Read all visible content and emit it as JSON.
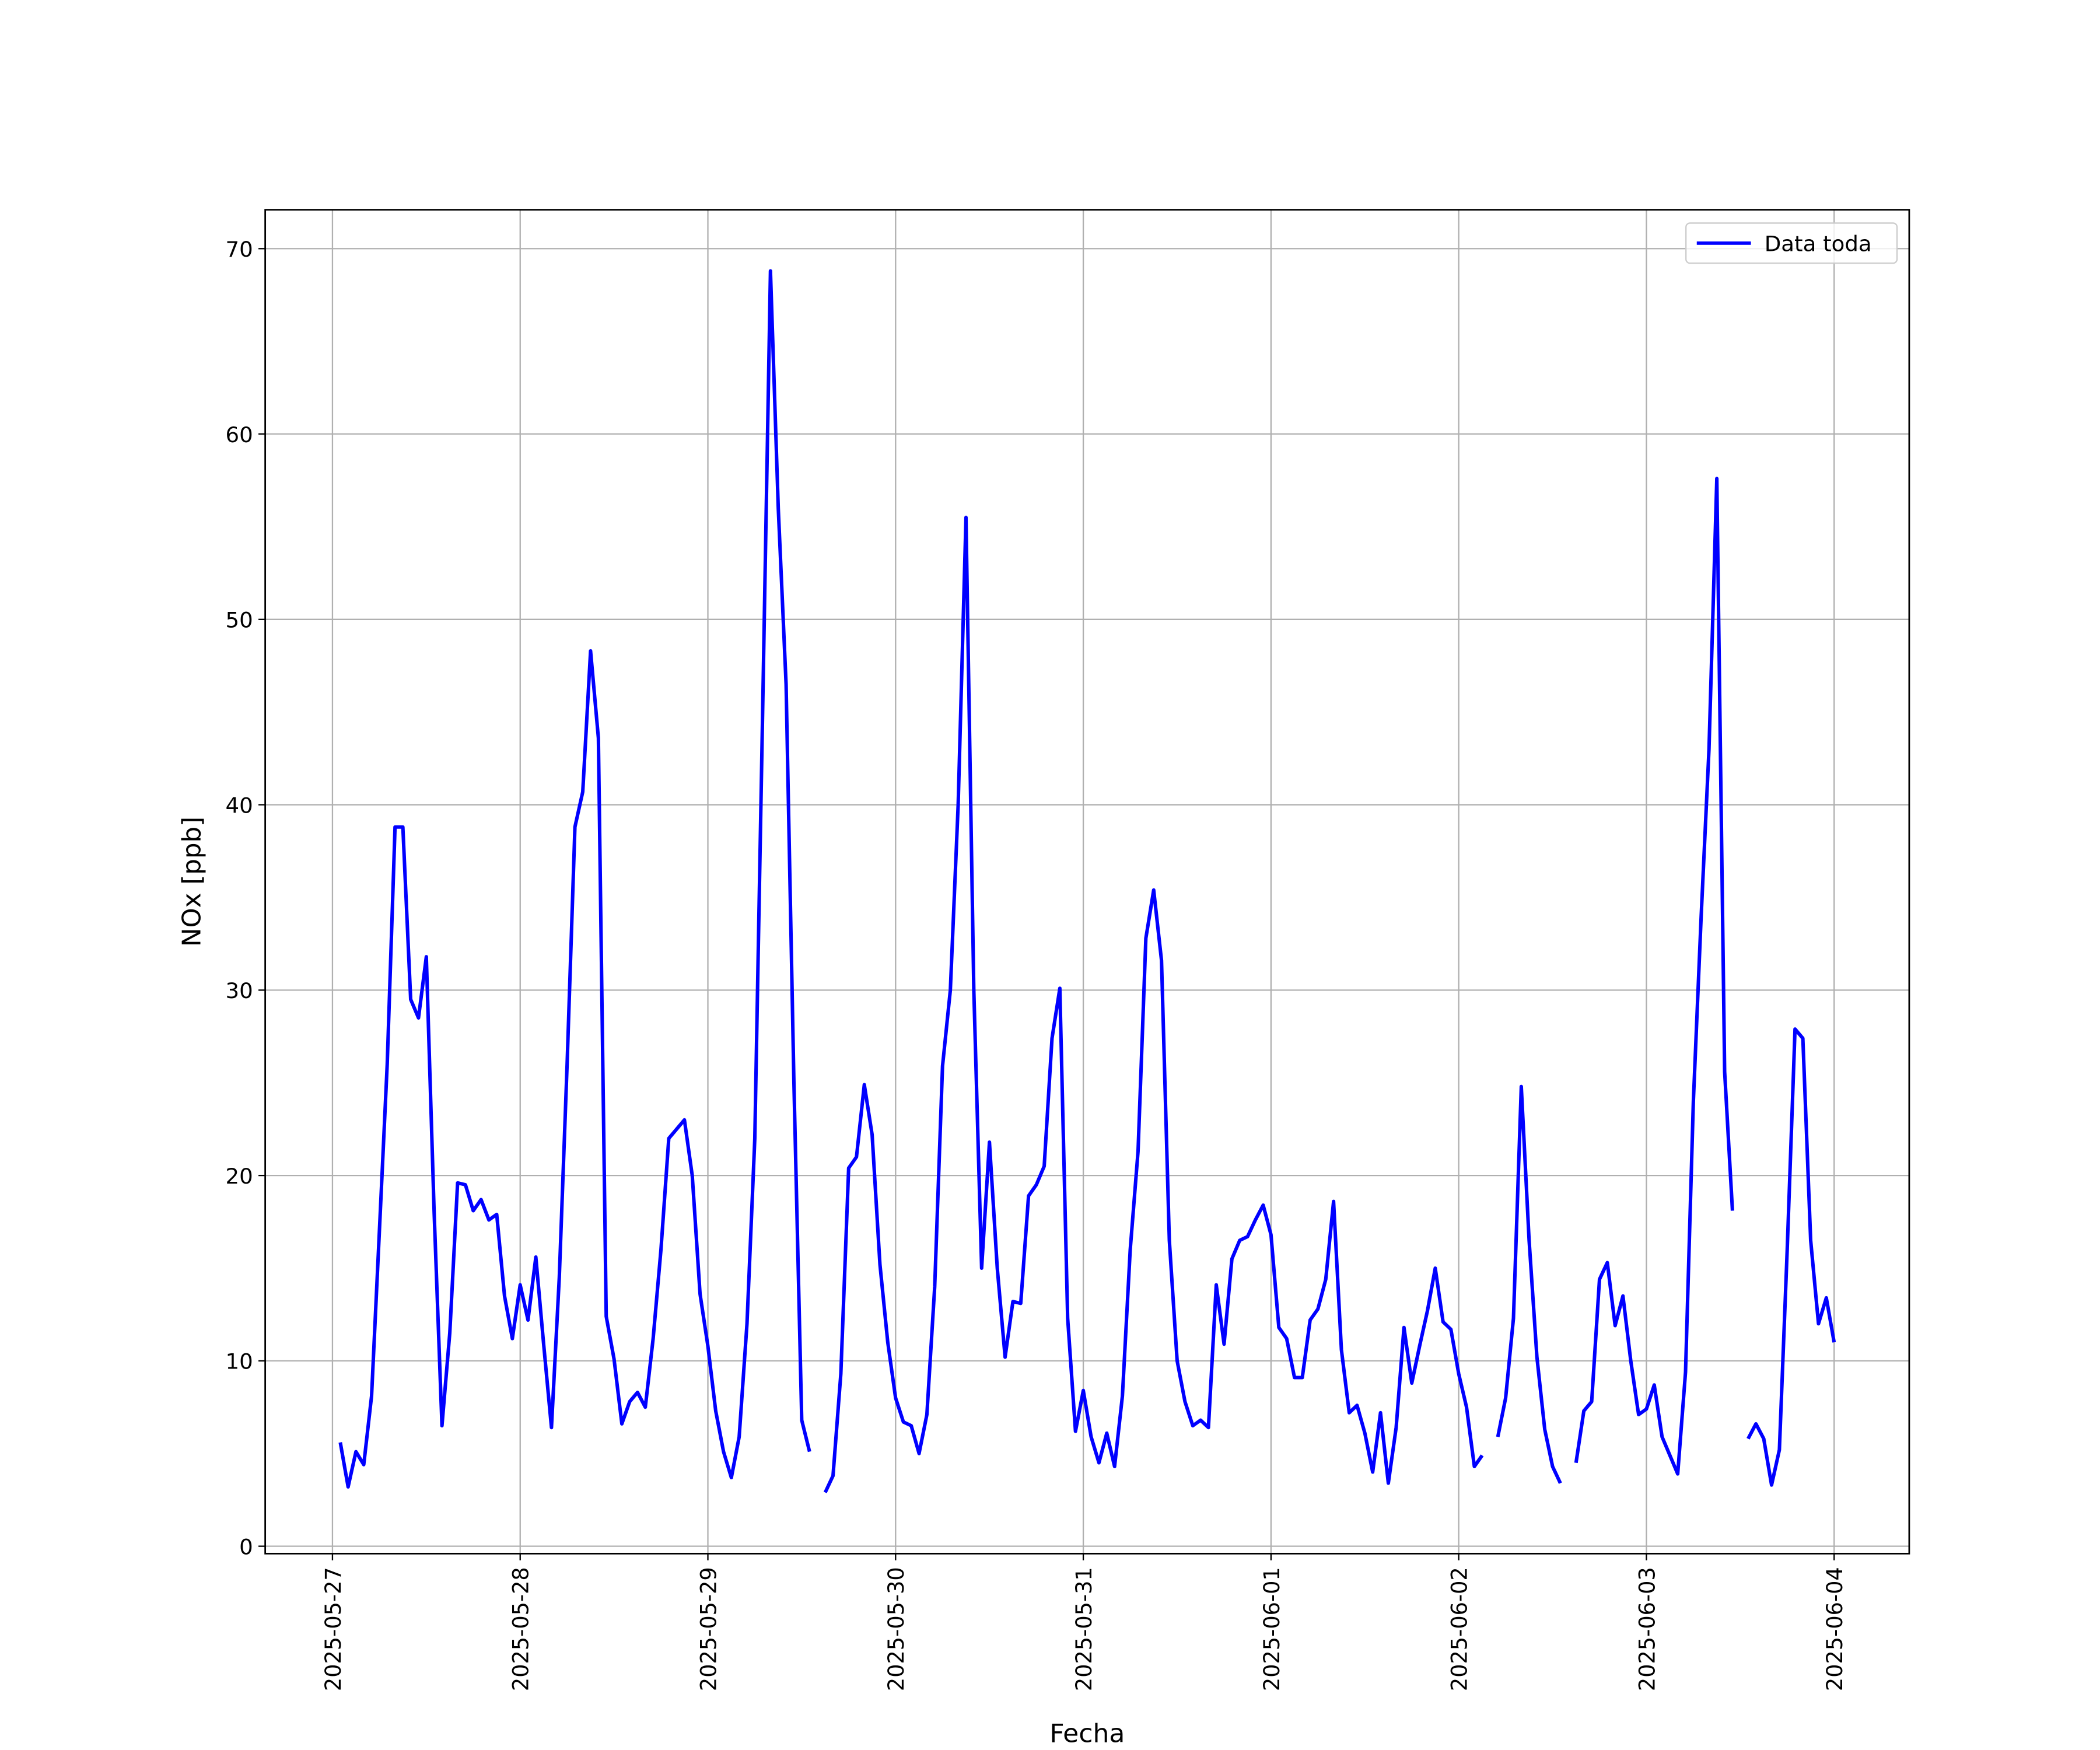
{
  "chart_data": {
    "type": "line",
    "xlabel": "Fecha",
    "ylabel": "NOx [ppb]",
    "grid": true,
    "legend": "upper right",
    "xlim": [
      "2025-05-26 15:24",
      "2025-06-04 09:36"
    ],
    "ylim": [
      -0.4,
      72.1
    ],
    "xticks": [
      "2025-05-27",
      "2025-05-28",
      "2025-05-29",
      "2025-05-30",
      "2025-05-31",
      "2025-06-01",
      "2025-06-02",
      "2025-06-03",
      "2025-06-04"
    ],
    "yticks": [
      0,
      10,
      20,
      30,
      40,
      50,
      60,
      70
    ],
    "x": [
      "2025-05-27 01:00",
      "2025-05-27 02:00",
      "2025-05-27 03:00",
      "2025-05-27 04:00",
      "2025-05-27 05:00",
      "2025-05-27 06:00",
      "2025-05-27 07:00",
      "2025-05-27 08:00",
      "2025-05-27 09:00",
      "2025-05-27 10:00",
      "2025-05-27 11:00",
      "2025-05-27 12:00",
      "2025-05-27 13:00",
      "2025-05-27 14:00",
      "2025-05-27 15:00",
      "2025-05-27 16:00",
      "2025-05-27 17:00",
      "2025-05-27 18:00",
      "2025-05-27 19:00",
      "2025-05-27 20:00",
      "2025-05-27 21:00",
      "2025-05-27 22:00",
      "2025-05-27 23:00",
      "2025-05-28 00:00",
      "2025-05-28 01:00",
      "2025-05-28 02:00",
      "2025-05-28 03:00",
      "2025-05-28 04:00",
      "2025-05-28 05:00",
      "2025-05-28 06:00",
      "2025-05-28 07:00",
      "2025-05-28 08:00",
      "2025-05-28 09:00",
      "2025-05-28 10:00",
      "2025-05-28 11:00",
      "2025-05-28 12:00",
      "2025-05-28 13:00",
      "2025-05-28 14:00",
      "2025-05-28 15:00",
      "2025-05-28 16:00",
      "2025-05-28 17:00",
      "2025-05-28 18:00",
      "2025-05-28 19:00",
      "2025-05-28 20:00",
      "2025-05-28 21:00",
      "2025-05-28 22:00",
      "2025-05-28 23:00",
      "2025-05-29 00:00",
      "2025-05-29 01:00",
      "2025-05-29 02:00",
      "2025-05-29 03:00",
      "2025-05-29 04:00",
      "2025-05-29 05:00",
      "2025-05-29 06:00",
      "2025-05-29 07:00",
      "2025-05-29 08:00",
      "2025-05-29 09:00",
      "2025-05-29 10:00",
      "2025-05-29 11:00",
      "2025-05-29 12:00",
      "2025-05-29 13:00",
      "2025-05-29 14:00",
      "2025-05-29 15:00",
      "2025-05-29 16:00",
      "2025-05-29 17:00",
      "2025-05-29 18:00",
      "2025-05-29 19:00",
      "2025-05-29 20:00",
      "2025-05-29 21:00",
      "2025-05-29 22:00",
      "2025-05-29 23:00",
      "2025-05-30 00:00",
      "2025-05-30 01:00",
      "2025-05-30 02:00",
      "2025-05-30 03:00",
      "2025-05-30 04:00",
      "2025-05-30 05:00",
      "2025-05-30 06:00",
      "2025-05-30 07:00",
      "2025-05-30 08:00",
      "2025-05-30 09:00",
      "2025-05-30 10:00",
      "2025-05-30 11:00",
      "2025-05-30 12:00",
      "2025-05-30 13:00",
      "2025-05-30 14:00",
      "2025-05-30 15:00",
      "2025-05-30 16:00",
      "2025-05-30 17:00",
      "2025-05-30 18:00",
      "2025-05-30 19:00",
      "2025-05-30 20:00",
      "2025-05-30 21:00",
      "2025-05-30 22:00",
      "2025-05-30 23:00",
      "2025-05-31 00:00",
      "2025-05-31 01:00",
      "2025-05-31 02:00",
      "2025-05-31 03:00",
      "2025-05-31 04:00",
      "2025-05-31 05:00",
      "2025-05-31 06:00",
      "2025-05-31 07:00",
      "2025-05-31 08:00",
      "2025-05-31 09:00",
      "2025-05-31 10:00",
      "2025-05-31 11:00",
      "2025-05-31 12:00",
      "2025-05-31 13:00",
      "2025-05-31 14:00",
      "2025-05-31 15:00",
      "2025-05-31 16:00",
      "2025-05-31 17:00",
      "2025-05-31 18:00",
      "2025-05-31 19:00",
      "2025-05-31 20:00",
      "2025-05-31 21:00",
      "2025-05-31 22:00",
      "2025-05-31 23:00",
      "2025-06-01 00:00",
      "2025-06-01 01:00",
      "2025-06-01 02:00",
      "2025-06-01 03:00",
      "2025-06-01 04:00",
      "2025-06-01 05:00",
      "2025-06-01 06:00",
      "2025-06-01 07:00",
      "2025-06-01 08:00",
      "2025-06-01 09:00",
      "2025-06-01 10:00",
      "2025-06-01 11:00",
      "2025-06-01 12:00",
      "2025-06-01 13:00",
      "2025-06-01 14:00",
      "2025-06-01 15:00",
      "2025-06-01 16:00",
      "2025-06-01 17:00",
      "2025-06-01 18:00",
      "2025-06-01 19:00",
      "2025-06-01 20:00",
      "2025-06-01 21:00",
      "2025-06-01 22:00",
      "2025-06-01 23:00",
      "2025-06-02 00:00",
      "2025-06-02 01:00",
      "2025-06-02 02:00",
      "2025-06-02 03:00",
      "2025-06-02 04:00",
      "2025-06-02 05:00",
      "2025-06-02 06:00",
      "2025-06-02 07:00",
      "2025-06-02 08:00",
      "2025-06-02 09:00",
      "2025-06-02 10:00",
      "2025-06-02 11:00",
      "2025-06-02 12:00",
      "2025-06-02 13:00",
      "2025-06-02 14:00",
      "2025-06-02 15:00",
      "2025-06-02 16:00",
      "2025-06-02 17:00",
      "2025-06-02 18:00",
      "2025-06-02 19:00",
      "2025-06-02 20:00",
      "2025-06-02 21:00",
      "2025-06-02 22:00",
      "2025-06-02 23:00",
      "2025-06-03 00:00",
      "2025-06-03 01:00",
      "2025-06-03 02:00",
      "2025-06-03 03:00",
      "2025-06-03 04:00",
      "2025-06-03 05:00",
      "2025-06-03 06:00",
      "2025-06-03 07:00",
      "2025-06-03 08:00",
      "2025-06-03 09:00",
      "2025-06-03 10:00",
      "2025-06-03 11:00",
      "2025-06-03 12:00",
      "2025-06-03 13:00",
      "2025-06-03 14:00",
      "2025-06-03 15:00",
      "2025-06-03 16:00",
      "2025-06-03 17:00",
      "2025-06-03 18:00",
      "2025-06-03 19:00",
      "2025-06-03 20:00",
      "2025-06-03 21:00",
      "2025-06-03 22:00",
      "2025-06-03 23:00",
      "2025-06-04 00:00"
    ],
    "series": [
      {
        "name": "Data toda",
        "color": "#0000ff",
        "values": [
          5.6,
          3.2,
          5.1,
          4.4,
          8.1,
          17,
          26,
          38.8,
          38.8,
          29.5,
          28.5,
          31.8,
          18,
          6.5,
          11.5,
          19.6,
          19.5,
          18.1,
          18.7,
          17.6,
          17.9,
          13.5,
          11.2,
          14.1,
          12.2,
          15.6,
          10.9,
          6.4,
          14.5,
          26,
          38.8,
          40.7,
          48.3,
          43.6,
          12.4,
          10.1,
          6.6,
          7.8,
          8.3,
          7.5,
          11.2,
          16,
          22,
          22.5,
          23,
          20,
          13.6,
          10.8,
          7.3,
          5.1,
          3.7,
          5.9,
          12,
          22,
          45,
          68.8,
          56,
          46.5,
          25,
          6.8,
          5.1,
          null,
          2.9,
          3.8,
          9.3,
          20.4,
          21,
          24.9,
          22.2,
          15.2,
          11,
          8,
          6.7,
          6.5,
          5,
          7.1,
          14,
          25.9,
          30,
          40,
          55.5,
          30,
          15,
          21.8,
          15,
          10.2,
          13.2,
          13.1,
          18.9,
          19.5,
          20.5,
          27.4,
          30.1,
          12.3,
          6.2,
          8.4,
          5.9,
          4.5,
          6.1,
          4.3,
          8.1,
          16,
          21.3,
          32.8,
          35.4,
          31.6,
          16.5,
          10,
          7.8,
          6.5,
          6.8,
          6.4,
          14.1,
          10.9,
          15.5,
          16.5,
          16.7,
          17.6,
          18.4,
          16.8,
          11.8,
          11.2,
          9.1,
          9.1,
          12.2,
          12.8,
          14.4,
          18.6,
          10.6,
          7.2,
          7.6,
          6.1,
          4,
          7.2,
          3.4,
          6.4,
          11.8,
          8.8,
          10.8,
          12.7,
          15,
          12.1,
          11.7,
          9.3,
          7.5,
          4.3,
          4.9,
          null,
          5.9,
          8,
          12.3,
          24.8,
          16.5,
          10.2,
          6.3,
          4.3,
          3.4,
          null,
          4.5,
          7.3,
          7.8,
          14.4,
          15.3,
          11.9,
          13.5,
          10,
          7.1,
          7.4,
          8.7,
          5.9,
          4.9,
          3.9,
          9.4,
          24,
          34,
          43,
          57.6,
          25.6,
          18.1,
          null,
          5.8,
          6.6,
          5.8,
          3.3,
          5.2,
          16,
          27.9,
          27.4,
          16.5,
          12,
          13.4,
          11
        ]
      }
    ]
  }
}
